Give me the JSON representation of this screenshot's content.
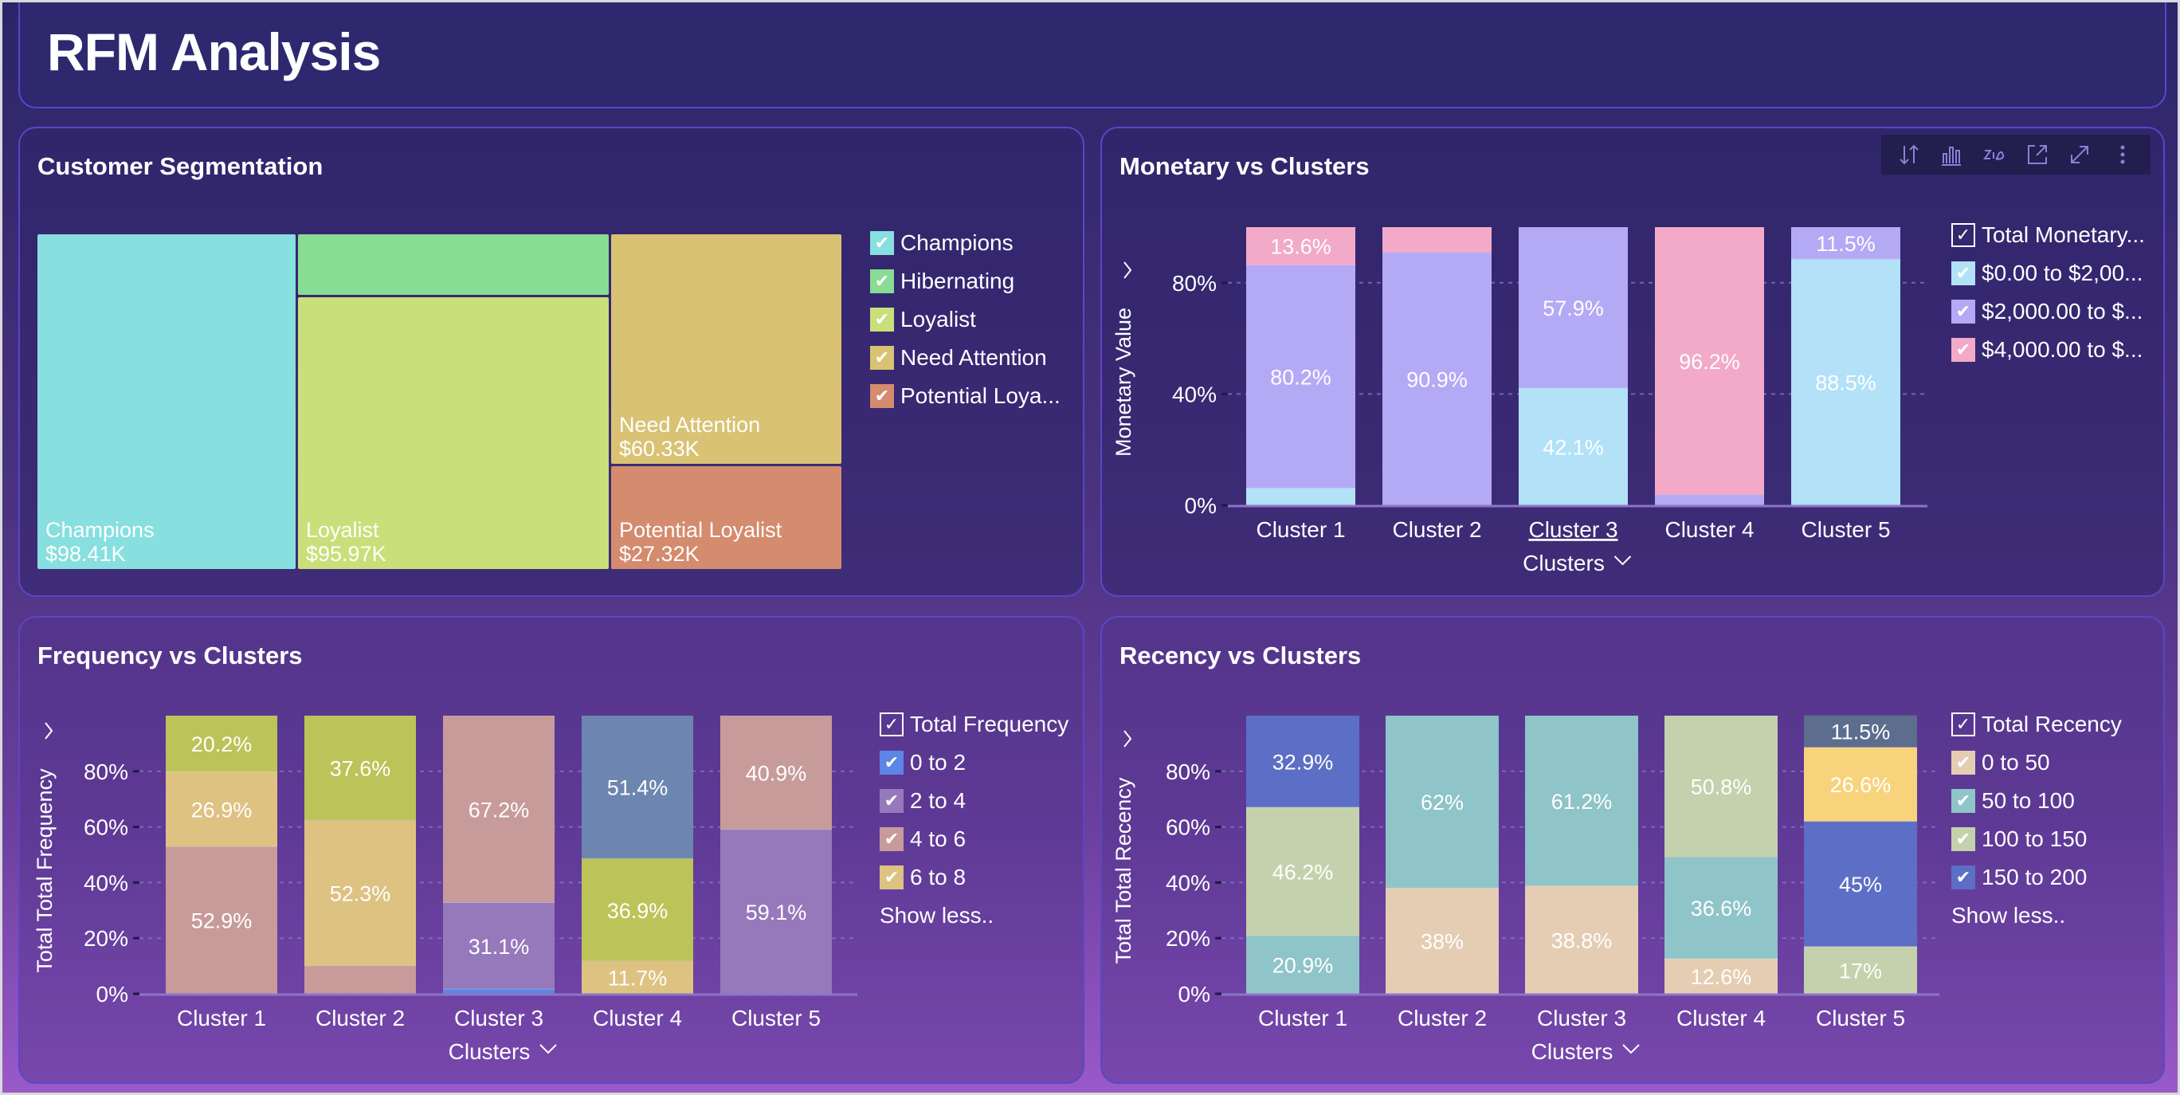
{
  "page": {
    "title": "RFM Analysis"
  },
  "toolbar": {
    "icons": [
      "sort-icon",
      "chart-type-icon",
      "zia-icon",
      "open-external-icon",
      "expand-icon",
      "more-options-icon"
    ]
  },
  "segmentation": {
    "title": "Customer Segmentation",
    "legend": [
      {
        "label": "Champions",
        "color": "#88dfdf",
        "checked": true
      },
      {
        "label": "Hibernating",
        "color": "#88dc93",
        "checked": true
      },
      {
        "label": "Loyalist",
        "color": "#c9df7a",
        "checked": true
      },
      {
        "label": "Need Attention",
        "color": "#d9c274",
        "checked": true
      },
      {
        "label": "Potential Loya...",
        "color": "#d48b6e",
        "checked": true
      }
    ]
  },
  "monetary": {
    "title": "Monetary vs Clusters",
    "legend_total": "Total Monetary...",
    "legend": [
      {
        "label": "$0.00 to $2,00...",
        "color": "#b3e1f8"
      },
      {
        "label": "$2,000.00 to $...",
        "color": "#b4a9f5"
      },
      {
        "label": "$4,000.00 to $...",
        "color": "#f2aac8"
      }
    ]
  },
  "frequency": {
    "title": "Frequency vs Clusters",
    "legend_total": "Total Frequency",
    "legend": [
      {
        "label": "0 to 2",
        "color": "#5b86e5"
      },
      {
        "label": "2 to 4",
        "color": "#9679bb"
      },
      {
        "label": "4 to 6",
        "color": "#c89b9b"
      },
      {
        "label": "6 to 8",
        "color": "#dec282"
      }
    ],
    "legend_more": "Show less.."
  },
  "recency": {
    "title": "Recency vs Clusters",
    "legend_total": "Total Recency",
    "legend": [
      {
        "label": "0 to 50",
        "color": "#e5cdb3"
      },
      {
        "label": "50 to 100",
        "color": "#8fc4c8"
      },
      {
        "label": "100 to 150",
        "color": "#c4d1ad"
      },
      {
        "label": "150 to 200",
        "color": "#5d6ec6"
      }
    ],
    "legend_more": "Show less.."
  },
  "chart_data": [
    {
      "id": "segmentation",
      "type": "treemap",
      "title": "Customer Segmentation",
      "items": [
        {
          "name": "Champions",
          "value": 98.41,
          "label": "$98.41K",
          "color": "#88dfdf"
        },
        {
          "name": "Hibernating",
          "value": null,
          "label": "",
          "color": "#88dc93"
        },
        {
          "name": "Loyalist",
          "value": 95.97,
          "label": "$95.97K",
          "color": "#c9df7a"
        },
        {
          "name": "Need Attention",
          "value": 60.33,
          "label": "$60.33K",
          "color": "#d9c274"
        },
        {
          "name": "Potential Loyalist",
          "value": 27.32,
          "label": "$27.32K",
          "color": "#d48b6e"
        }
      ],
      "unit": "$K"
    },
    {
      "id": "monetary",
      "type": "bar",
      "stacked": "percent",
      "title": "Monetary vs Clusters",
      "xlabel": "Clusters",
      "ylabel": "Monetary Value",
      "categories": [
        "Cluster 1",
        "Cluster 2",
        "Cluster 3",
        "Cluster 4",
        "Cluster 5"
      ],
      "highlighted_category": "Cluster 3",
      "yticks": [
        "0%",
        "40%",
        "80%"
      ],
      "ylim": [
        0,
        100
      ],
      "series": [
        {
          "name": "$0.00 to $2,00...",
          "color": "#b3e1f8",
          "values": [
            6.2,
            0,
            42.1,
            0,
            88.5
          ],
          "labels": [
            "",
            "",
            "42.1%",
            "",
            "88.5%"
          ]
        },
        {
          "name": "$2,000.00 to $...",
          "color": "#b4a9f5",
          "values": [
            80.2,
            90.9,
            57.9,
            3.8,
            11.5
          ],
          "labels": [
            "80.2%",
            "90.9%",
            "57.9%",
            "",
            "11.5%"
          ]
        },
        {
          "name": "$4,000.00 to $...",
          "color": "#f2aac8",
          "values": [
            13.6,
            9.1,
            0,
            96.2,
            0
          ],
          "labels": [
            "13.6%",
            "",
            "",
            "96.2%",
            ""
          ]
        }
      ]
    },
    {
      "id": "frequency",
      "type": "bar",
      "stacked": "percent",
      "title": "Frequency vs Clusters",
      "xlabel": "Clusters",
      "ylabel": "Total Total Frequency",
      "categories": [
        "Cluster 1",
        "Cluster 2",
        "Cluster 3",
        "Cluster 4",
        "Cluster 5"
      ],
      "yticks": [
        "0%",
        "20%",
        "40%",
        "60%",
        "80%"
      ],
      "ylim": [
        0,
        100
      ],
      "series": [
        {
          "name": "0 to 2",
          "color": "#5b86e5",
          "values": [
            0,
            0,
            1.7,
            0,
            0
          ],
          "labels": [
            "",
            "",
            "",
            "",
            ""
          ]
        },
        {
          "name": "2 to 4",
          "color": "#9679bb",
          "values": [
            0,
            0,
            31.1,
            0,
            59.1
          ],
          "labels": [
            "",
            "",
            "31.1%",
            "",
            "59.1%"
          ]
        },
        {
          "name": "4 to 6",
          "color": "#c89b9b",
          "values": [
            52.9,
            10.1,
            67.2,
            0,
            40.9
          ],
          "labels": [
            "52.9%",
            "",
            "67.2%",
            "",
            "40.9%"
          ]
        },
        {
          "name": "6 to 8",
          "color": "#dec282",
          "values": [
            26.9,
            52.3,
            0,
            11.7,
            0
          ],
          "labels": [
            "26.9%",
            "52.3%",
            "",
            "11.7%",
            ""
          ]
        },
        {
          "name": "",
          "color": "#bcc358",
          "values": [
            20.2,
            37.6,
            0,
            36.9,
            0
          ],
          "labels": [
            "20.2%",
            "37.6%",
            "",
            "36.9%",
            ""
          ]
        },
        {
          "name": "",
          "color": "#6d86b1",
          "values": [
            0,
            0,
            0,
            51.4,
            0
          ],
          "labels": [
            "",
            "",
            "",
            "51.4%",
            ""
          ]
        }
      ]
    },
    {
      "id": "recency",
      "type": "bar",
      "stacked": "percent",
      "title": "Recency vs Clusters",
      "xlabel": "Clusters",
      "ylabel": "Total Total Recency",
      "categories": [
        "Cluster 1",
        "Cluster 2",
        "Cluster 3",
        "Cluster 4",
        "Cluster 5"
      ],
      "yticks": [
        "0%",
        "20%",
        "40%",
        "60%",
        "80%"
      ],
      "ylim": [
        0,
        100
      ],
      "series": [
        {
          "name": "0 to 50",
          "color": "#e5cdb3",
          "values": [
            0,
            38,
            38.8,
            12.6,
            0
          ],
          "labels": [
            "",
            "38%",
            "38.8%",
            "12.6%",
            ""
          ]
        },
        {
          "name": "50 to 100",
          "color": "#8fc4c8",
          "values": [
            20.9,
            62,
            61.2,
            36.6,
            0
          ],
          "labels": [
            "20.9%",
            "62%",
            "61.2%",
            "36.6%",
            ""
          ]
        },
        {
          "name": "100 to 150",
          "color": "#c4d1ad",
          "values": [
            46.2,
            0,
            0,
            50.8,
            17
          ],
          "labels": [
            "46.2%",
            "",
            "",
            "50.8%",
            "17%"
          ]
        },
        {
          "name": "150 to 200",
          "color": "#5d6ec6",
          "values": [
            32.9,
            0,
            0,
            0,
            45
          ],
          "labels": [
            "32.9%",
            "",
            "",
            "",
            "45%"
          ]
        },
        {
          "name": "",
          "color": "#f7d37c",
          "values": [
            0,
            0,
            0,
            0,
            26.6
          ],
          "labels": [
            "",
            "",
            "",
            "",
            "26.6%"
          ]
        },
        {
          "name": "",
          "color": "#5d6d8e",
          "values": [
            0,
            0,
            0,
            0,
            11.5
          ],
          "labels": [
            "",
            "",
            "",
            "",
            "11.5%"
          ]
        }
      ]
    }
  ]
}
